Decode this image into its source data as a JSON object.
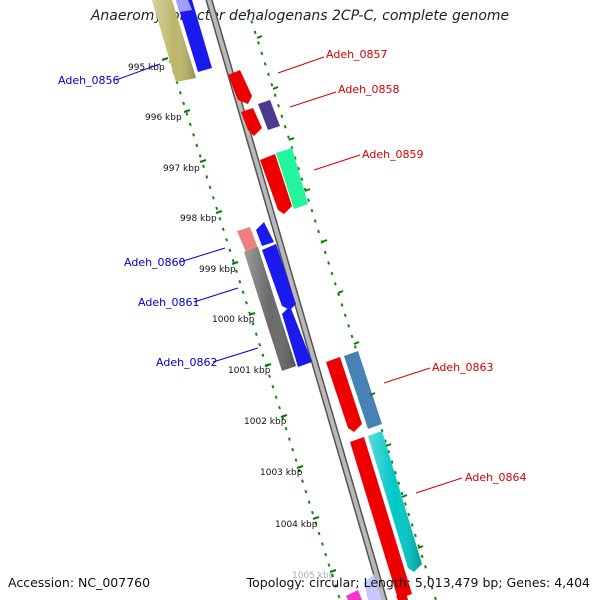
{
  "title": "Anaeromyxobacter dehalogenans 2CP-C, complete genome",
  "footer": {
    "accession": "Accession: NC_007760",
    "stats": "Topology: circular; Length: 5,013,479 bp; Genes: 4,404"
  },
  "scale_ticks": [
    "995 kbp",
    "996 kbp",
    "997 kbp",
    "998 kbp",
    "999 kbp",
    "1000 kbp",
    "1001 kbp",
    "1002 kbp",
    "1003 kbp",
    "1004 kbp",
    "1005 kbp"
  ],
  "gene_labels": {
    "Adeh_0856": "Adeh_0856",
    "Adeh_0857": "Adeh_0857",
    "Adeh_0858": "Adeh_0858",
    "Adeh_0859": "Adeh_0859",
    "Adeh_0860": "Adeh_0860",
    "Adeh_0861": "Adeh_0861",
    "Adeh_0862": "Adeh_0862",
    "Adeh_0863": "Adeh_0863",
    "Adeh_0864": "Adeh_0864"
  },
  "colors": {
    "forward_label": "#d40000",
    "reverse_label": "#0000cc",
    "scale": "#008000",
    "backbone": "#888888"
  }
}
